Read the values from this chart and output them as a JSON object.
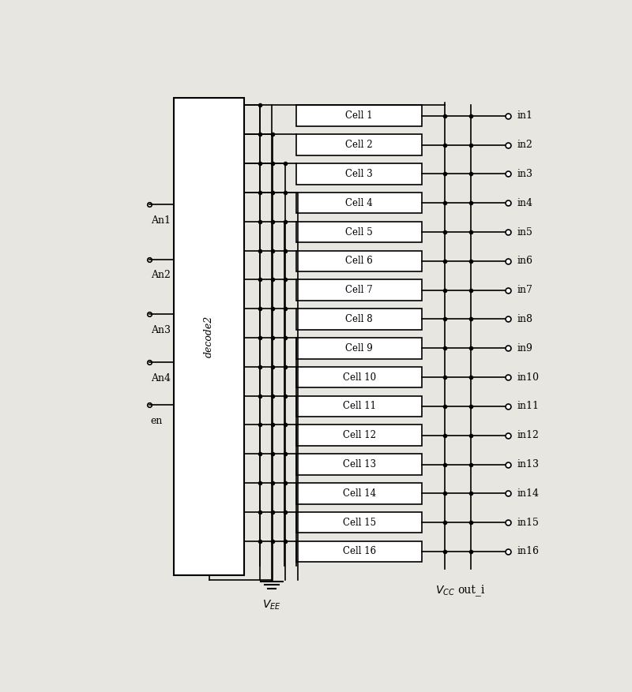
{
  "fig_width": 8.0,
  "fig_height": 8.77,
  "dpi": 100,
  "bg_color": "#e8e6e0",
  "num_cells": 16,
  "cell_labels": [
    "Cell 1",
    "Cell 2",
    "Cell 3",
    "Cell 4",
    "Cell 5",
    "Cell 6",
    "Cell 7",
    "Cell 8",
    "Cell 9",
    "Cell 10",
    "Cell 11",
    "Cell 12",
    "Cell 13",
    "Cell 14",
    "Cell 15",
    "Cell 16"
  ],
  "in_labels": [
    "in1",
    "in2",
    "in3",
    "in4",
    "in5",
    "in6",
    "in7",
    "in8",
    "in9",
    "in10",
    "in11",
    "in12",
    "in13",
    "in14",
    "in15",
    "in16"
  ],
  "an_labels": [
    "An1",
    "An2",
    "An3",
    "An4"
  ],
  "en_label": "en",
  "decode2_label": "decode2"
}
